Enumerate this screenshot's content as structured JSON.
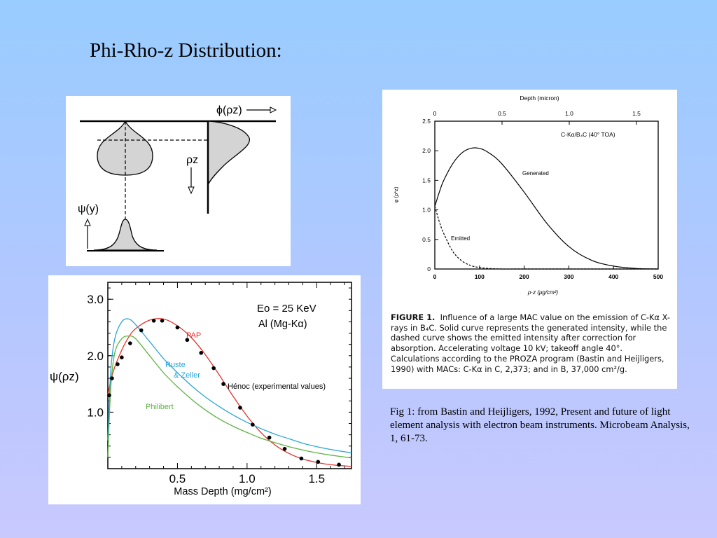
{
  "slide": {
    "title": "Phi-Rho-z Distribution:",
    "caption": "Fig 1: from Bastin and Heijligers, 1992, Present and future of light element analysis with electron beam instruments. Microbeam Analysis, 1, 61-73."
  },
  "diagram": {
    "phi_label": "ϕ(ρz)",
    "rhoz_label": "ρz",
    "psi_label": "ψ(y)"
  },
  "figure1": {
    "label": "FIGURE 1.",
    "caption": "Influence of a large MAC value on the emission of C-Kα X-rays in B₄C. Solid curve represents the generated intensity, while the dashed curve shows the emitted intensity after correction for absorption. Accelerating voltage 10 kV; takeoff angle 40°. Calculations according to the PROZA program (Bastin and Heijligers, 1990) with MACs: C-Kα in C, 2,373; and in B, 37,000 cm²/g.",
    "chart_data": {
      "type": "line",
      "title": "C-Kα/B₄C (40° TOA)",
      "top_axis_label": "Depth (micron)",
      "top_ticks": [
        "0",
        "0.5",
        "1.0",
        "1.5"
      ],
      "xlabel": "ρ·z (μg/cm²)",
      "ylabel": "φ (ρ*z)",
      "xlim": [
        0,
        500
      ],
      "ylim": [
        0,
        2.5
      ],
      "x_ticks": [
        "0",
        "100",
        "200",
        "300",
        "400",
        "500"
      ],
      "y_ticks": [
        "0",
        "0.5",
        "1.0",
        "1.5",
        "2.0",
        "2.5"
      ],
      "x": [
        0,
        10,
        20,
        40,
        60,
        80,
        100,
        120,
        150,
        200,
        250,
        300,
        350,
        400,
        450,
        500
      ],
      "series": [
        {
          "name": "Generated",
          "style": "solid",
          "values": [
            1.06,
            1.3,
            1.5,
            1.78,
            1.96,
            2.04,
            2.04,
            1.97,
            1.78,
            1.3,
            0.78,
            0.38,
            0.15,
            0.05,
            0.01,
            0.0
          ]
        },
        {
          "name": "Emitted",
          "style": "dashed",
          "values": [
            1.06,
            0.8,
            0.6,
            0.3,
            0.14,
            0.06,
            0.025,
            0.01,
            0.0,
            0.0,
            0.0,
            0.0,
            0.0,
            0.0,
            0.0,
            0.0
          ]
        }
      ]
    }
  },
  "mass_chart": {
    "chart_data": {
      "type": "line",
      "xlabel": "Mass Depth (mg/cm²)",
      "ylabel": "ψ(ρz)",
      "annotation_energy": "Eo = 25 KeV",
      "annotation_line": "Al (Mg-Kα)",
      "xlim": [
        0,
        1.75
      ],
      "ylim": [
        0,
        3.3
      ],
      "x_ticks": [
        "0.5",
        "1.0",
        "1.5"
      ],
      "y_ticks": [
        "1.0",
        "2.0",
        "3.0"
      ],
      "x": [
        0,
        0.02,
        0.05,
        0.1,
        0.15,
        0.2,
        0.3,
        0.4,
        0.5,
        0.6,
        0.7,
        0.8,
        0.9,
        1.0,
        1.1,
        1.2,
        1.3,
        1.4,
        1.5,
        1.6,
        1.75
      ],
      "series": [
        {
          "name": "PAP",
          "color": "#e8312a",
          "values": [
            1.3,
            1.55,
            1.8,
            2.1,
            2.33,
            2.48,
            2.63,
            2.65,
            2.53,
            2.32,
            2.02,
            1.66,
            1.28,
            0.93,
            0.64,
            0.42,
            0.27,
            0.17,
            0.11,
            0.07,
            0.04
          ]
        },
        {
          "name": "Ruste & Zeller",
          "color": "#29a6dc",
          "values": [
            0.5,
            1.7,
            2.3,
            2.6,
            2.65,
            2.55,
            2.25,
            1.95,
            1.7,
            1.47,
            1.27,
            1.1,
            0.95,
            0.82,
            0.71,
            0.61,
            0.53,
            0.45,
            0.39,
            0.34,
            0.28
          ]
        },
        {
          "name": "Philibert",
          "color": "#5db442",
          "values": [
            0.2,
            1.4,
            2.05,
            2.3,
            2.35,
            2.3,
            2.0,
            1.7,
            1.45,
            1.23,
            1.04,
            0.88,
            0.75,
            0.64,
            0.54,
            0.46,
            0.39,
            0.33,
            0.28,
            0.24,
            0.19
          ]
        }
      ],
      "points_name": "Hénoc (experimental values)",
      "points": [
        [
          0.01,
          1.3
        ],
        [
          0.03,
          1.6
        ],
        [
          0.07,
          1.85
        ],
        [
          0.1,
          1.97
        ],
        [
          0.16,
          2.22
        ],
        [
          0.24,
          2.45
        ],
        [
          0.33,
          2.62
        ],
        [
          0.39,
          2.62
        ],
        [
          0.5,
          2.5
        ],
        [
          0.57,
          2.28
        ],
        [
          0.67,
          2.05
        ],
        [
          0.76,
          1.78
        ],
        [
          0.83,
          1.5
        ],
        [
          0.95,
          1.08
        ],
        [
          1.04,
          0.78
        ],
        [
          1.16,
          0.55
        ],
        [
          1.27,
          0.35
        ],
        [
          1.39,
          0.18
        ],
        [
          1.51,
          0.12
        ],
        [
          1.66,
          0.07
        ]
      ]
    }
  }
}
